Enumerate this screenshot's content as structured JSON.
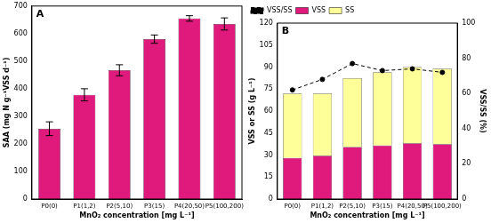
{
  "chart_data": [
    {
      "type": "bar",
      "annotations": [
        "A"
      ],
      "x_label": "MnO₂ concentration [mg L⁻¹]",
      "y_label": "SAA (mg N g⁻¹VSS d⁻¹)",
      "categories": [
        "P0(0)",
        "P1(1,2)",
        "P2(5,10)",
        "P3(15)",
        "P4(20,50)",
        "P5(100,200)"
      ],
      "values": [
        255,
        378,
        467,
        580,
        655,
        635
      ],
      "errors": [
        25,
        22,
        20,
        15,
        10,
        22
      ],
      "color": "#e0197d",
      "ylim": [
        0,
        700
      ],
      "yticks": [
        0,
        100,
        200,
        300,
        400,
        500,
        600,
        700
      ],
      "grid": false
    },
    {
      "type": "bar",
      "stacked": true,
      "annotations": [
        "B"
      ],
      "x_label": "MnO₂ concentration [mg L⁻¹]",
      "y_label": "VSS or SS (g L⁻¹)",
      "y2_label": "VSS/SS (%)",
      "categories": [
        "P0(0)",
        "P1(1,2)",
        "P2(5,10)",
        "P3(15)",
        "P4(20,50)",
        "P5(100,200)"
      ],
      "series": [
        {
          "name": "VSS",
          "color": "#e0197d",
          "values": [
            28,
            29.5,
            35.5,
            36.5,
            38,
            37.5
          ]
        },
        {
          "name": "SS",
          "color": "#ffff99",
          "values": [
            44,
            42.5,
            47,
            50,
            52,
            51.5
          ]
        },
        {
          "name": "VSS/SS",
          "type": "line",
          "color": "#000000",
          "marker": "circle",
          "line_style": "dashed",
          "axis": "y2",
          "values": [
            62,
            68,
            77,
            73,
            74,
            72
          ]
        }
      ],
      "ylim": [
        0,
        120
      ],
      "yticks": [
        0,
        15,
        30,
        45,
        60,
        75,
        90,
        105,
        120
      ],
      "y2lim": [
        0,
        100
      ],
      "y2ticks": [
        0,
        20,
        40,
        60,
        80,
        100
      ],
      "legend": "upper left",
      "grid": false
    }
  ]
}
